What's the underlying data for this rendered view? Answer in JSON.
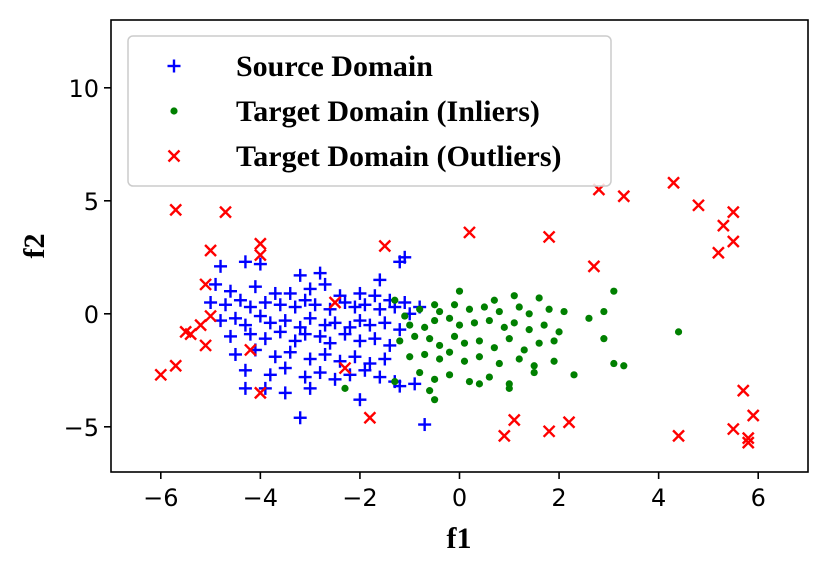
{
  "chart_data": {
    "type": "scatter",
    "xlabel": "f1",
    "ylabel": "f2",
    "xlim": [
      -7,
      7
    ],
    "ylim": [
      -7,
      13
    ],
    "xticks": [
      -6,
      -4,
      -2,
      0,
      2,
      4,
      6
    ],
    "yticks": [
      -5,
      0,
      5,
      10
    ],
    "x_tick_labels": [
      "−6",
      "−4",
      "−2",
      "0",
      "2",
      "4",
      "6"
    ],
    "y_tick_labels": [
      "−5",
      "0",
      "5",
      "10"
    ],
    "grid": false,
    "legend_position": "upper-left",
    "series": [
      {
        "name": "Source Domain",
        "marker": "plus",
        "color": "#0000ff",
        "points": [
          [
            -4.8,
            2.1
          ],
          [
            -4.3,
            2.3
          ],
          [
            -4.0,
            2.2
          ],
          [
            -3.2,
            1.7
          ],
          [
            -2.8,
            1.8
          ],
          [
            -1.6,
            1.5
          ],
          [
            -1.2,
            2.3
          ],
          [
            -1.1,
            2.5
          ],
          [
            -4.9,
            1.3
          ],
          [
            -4.6,
            1.0
          ],
          [
            -4.1,
            1.2
          ],
          [
            -3.7,
            0.9
          ],
          [
            -3.4,
            0.9
          ],
          [
            -3.0,
            1.1
          ],
          [
            -2.7,
            1.3
          ],
          [
            -2.4,
            0.8
          ],
          [
            -2.0,
            0.9
          ],
          [
            -1.7,
            0.8
          ],
          [
            -1.4,
            0.6
          ],
          [
            -1.1,
            0.5
          ],
          [
            -0.8,
            0.3
          ],
          [
            -5.0,
            0.5
          ],
          [
            -4.7,
            0.4
          ],
          [
            -4.4,
            0.6
          ],
          [
            -4.2,
            0.3
          ],
          [
            -3.9,
            0.5
          ],
          [
            -3.6,
            0.4
          ],
          [
            -3.3,
            0.3
          ],
          [
            -3.1,
            0.6
          ],
          [
            -2.9,
            0.4
          ],
          [
            -2.6,
            0.2
          ],
          [
            -2.3,
            0.5
          ],
          [
            -2.1,
            0.3
          ],
          [
            -1.9,
            0.4
          ],
          [
            -1.6,
            0.2
          ],
          [
            -1.3,
            0.3
          ],
          [
            -1.0,
            0.0
          ],
          [
            -4.8,
            -0.3
          ],
          [
            -4.5,
            -0.2
          ],
          [
            -4.3,
            -0.5
          ],
          [
            -4.0,
            -0.1
          ],
          [
            -3.8,
            -0.4
          ],
          [
            -3.5,
            -0.3
          ],
          [
            -3.2,
            -0.6
          ],
          [
            -3.0,
            -0.2
          ],
          [
            -2.7,
            -0.5
          ],
          [
            -2.5,
            -0.4
          ],
          [
            -2.2,
            -0.6
          ],
          [
            -2.0,
            -0.3
          ],
          [
            -1.8,
            -0.5
          ],
          [
            -1.5,
            -0.4
          ],
          [
            -1.2,
            -0.7
          ],
          [
            -4.6,
            -1.0
          ],
          [
            -4.2,
            -0.9
          ],
          [
            -3.9,
            -1.1
          ],
          [
            -3.6,
            -0.8
          ],
          [
            -3.3,
            -1.2
          ],
          [
            -3.1,
            -0.9
          ],
          [
            -2.8,
            -1.0
          ],
          [
            -2.6,
            -1.3
          ],
          [
            -2.3,
            -0.9
          ],
          [
            -2.0,
            -1.2
          ],
          [
            -1.7,
            -1.1
          ],
          [
            -1.4,
            -1.4
          ],
          [
            -4.5,
            -1.8
          ],
          [
            -4.1,
            -1.6
          ],
          [
            -3.7,
            -1.9
          ],
          [
            -3.4,
            -1.7
          ],
          [
            -3.0,
            -2.0
          ],
          [
            -2.7,
            -1.8
          ],
          [
            -2.4,
            -2.1
          ],
          [
            -2.1,
            -1.9
          ],
          [
            -1.8,
            -2.2
          ],
          [
            -1.5,
            -2.0
          ],
          [
            -4.3,
            -2.5
          ],
          [
            -3.8,
            -2.7
          ],
          [
            -3.5,
            -2.4
          ],
          [
            -3.1,
            -2.8
          ],
          [
            -2.8,
            -2.6
          ],
          [
            -2.5,
            -2.9
          ],
          [
            -2.2,
            -2.7
          ],
          [
            -1.9,
            -2.5
          ],
          [
            -1.6,
            -2.8
          ],
          [
            -1.3,
            -3.0
          ],
          [
            -4.3,
            -3.3
          ],
          [
            -3.9,
            -3.3
          ],
          [
            -3.5,
            -3.5
          ],
          [
            -3.0,
            -3.3
          ],
          [
            -2.0,
            -3.8
          ],
          [
            -1.2,
            -3.2
          ],
          [
            -0.9,
            -3.1
          ],
          [
            -3.2,
            -4.6
          ],
          [
            -0.7,
            -4.9
          ]
        ]
      },
      {
        "name": "Target Domain (Inliers)",
        "marker": "dot",
        "color": "#008000",
        "points": [
          [
            -1.3,
            0.6
          ],
          [
            -0.5,
            0.4
          ],
          [
            0.0,
            1.0
          ],
          [
            0.7,
            0.6
          ],
          [
            1.1,
            0.8
          ],
          [
            1.6,
            0.7
          ],
          [
            3.1,
            1.0
          ],
          [
            2.9,
            0.1
          ],
          [
            -1.1,
            -0.1
          ],
          [
            -0.8,
            0.2
          ],
          [
            -0.4,
            0.1
          ],
          [
            -0.1,
            0.4
          ],
          [
            0.2,
            0.2
          ],
          [
            0.5,
            0.3
          ],
          [
            0.8,
            0.1
          ],
          [
            1.2,
            0.3
          ],
          [
            1.4,
            0.0
          ],
          [
            1.8,
            0.2
          ],
          [
            2.1,
            0.1
          ],
          [
            2.6,
            -0.2
          ],
          [
            4.4,
            -0.8
          ],
          [
            -1.0,
            -0.5
          ],
          [
            -0.7,
            -0.6
          ],
          [
            -0.5,
            -0.3
          ],
          [
            -0.2,
            -0.2
          ],
          [
            0.0,
            -0.5
          ],
          [
            0.3,
            -0.4
          ],
          [
            0.6,
            -0.3
          ],
          [
            0.9,
            -0.6
          ],
          [
            1.1,
            -0.4
          ],
          [
            1.4,
            -0.7
          ],
          [
            1.7,
            -0.5
          ],
          [
            2.0,
            -0.8
          ],
          [
            2.9,
            -1.1
          ],
          [
            -1.2,
            -1.2
          ],
          [
            -0.9,
            -1.0
          ],
          [
            -0.6,
            -1.1
          ],
          [
            -0.4,
            -1.4
          ],
          [
            -0.1,
            -1.0
          ],
          [
            0.1,
            -1.3
          ],
          [
            0.4,
            -1.2
          ],
          [
            0.7,
            -1.5
          ],
          [
            1.0,
            -1.1
          ],
          [
            1.3,
            -1.6
          ],
          [
            1.6,
            -1.3
          ],
          [
            1.9,
            -1.2
          ],
          [
            -1.0,
            -1.9
          ],
          [
            -0.7,
            -1.8
          ],
          [
            -0.4,
            -2.0
          ],
          [
            -0.2,
            -1.7
          ],
          [
            0.1,
            -2.1
          ],
          [
            0.4,
            -1.9
          ],
          [
            0.8,
            -2.2
          ],
          [
            1.2,
            -2.0
          ],
          [
            1.5,
            -2.3
          ],
          [
            1.9,
            -2.1
          ],
          [
            3.1,
            -2.2
          ],
          [
            3.3,
            -2.3
          ],
          [
            -0.8,
            -2.6
          ],
          [
            -0.5,
            -2.9
          ],
          [
            -0.2,
            -2.7
          ],
          [
            0.2,
            -3.0
          ],
          [
            0.6,
            -2.8
          ],
          [
            1.0,
            -3.1
          ],
          [
            1.5,
            -2.6
          ],
          [
            2.3,
            -2.7
          ],
          [
            -2.3,
            -3.3
          ],
          [
            -1.3,
            -3.0
          ],
          [
            -0.6,
            -3.4
          ],
          [
            0.4,
            -3.1
          ],
          [
            1.0,
            -3.3
          ],
          [
            -0.5,
            -3.8
          ]
        ]
      },
      {
        "name": "Target Domain (Outliers)",
        "marker": "x",
        "color": "#ff0000",
        "points": [
          [
            -5.7,
            4.6
          ],
          [
            -4.7,
            4.5
          ],
          [
            -4.0,
            3.1
          ],
          [
            -5.0,
            2.8
          ],
          [
            -4.0,
            2.6
          ],
          [
            -1.5,
            3.0
          ],
          [
            0.2,
            3.6
          ],
          [
            1.8,
            3.4
          ],
          [
            2.8,
            5.5
          ],
          [
            3.3,
            5.2
          ],
          [
            4.3,
            5.8
          ],
          [
            4.8,
            4.8
          ],
          [
            5.3,
            3.9
          ],
          [
            5.5,
            4.5
          ],
          [
            5.5,
            3.2
          ],
          [
            5.2,
            2.7
          ],
          [
            2.7,
            2.1
          ],
          [
            -5.1,
            1.3
          ],
          [
            -2.5,
            0.5
          ],
          [
            -5.0,
            -0.1
          ],
          [
            -5.2,
            -0.5
          ],
          [
            -5.5,
            -0.8
          ],
          [
            -5.4,
            -0.9
          ],
          [
            -5.1,
            -1.4
          ],
          [
            -4.2,
            -1.6
          ],
          [
            -5.7,
            -2.3
          ],
          [
            -6.0,
            -2.7
          ],
          [
            -2.3,
            -2.4
          ],
          [
            -4.0,
            -3.5
          ],
          [
            -1.8,
            -4.6
          ],
          [
            1.1,
            -4.7
          ],
          [
            0.9,
            -5.4
          ],
          [
            1.8,
            -5.2
          ],
          [
            2.2,
            -4.8
          ],
          [
            4.4,
            -5.4
          ],
          [
            5.7,
            -3.4
          ],
          [
            5.9,
            -4.5
          ],
          [
            5.5,
            -5.1
          ],
          [
            5.8,
            -5.5
          ],
          [
            5.8,
            -5.7
          ]
        ]
      }
    ]
  }
}
